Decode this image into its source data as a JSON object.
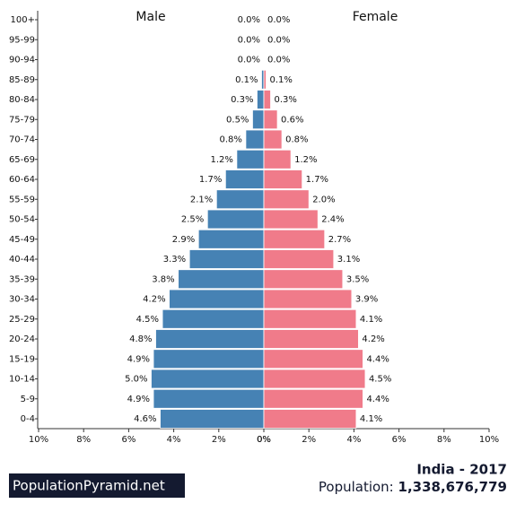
{
  "chart_data": {
    "type": "pyramid",
    "title": "India - 2017",
    "population_label": "Population:",
    "population": "1,338,676,779",
    "brand": "PopulationPyramid.net",
    "categories": [
      "100+",
      "95-99",
      "90-94",
      "85-89",
      "80-84",
      "75-79",
      "70-74",
      "65-69",
      "60-64",
      "55-59",
      "50-54",
      "45-49",
      "40-44",
      "35-39",
      "30-34",
      "25-29",
      "20-24",
      "15-19",
      "10-14",
      "5-9",
      "0-4"
    ],
    "series": [
      {
        "name": "Male",
        "color": "#4682b4",
        "values": [
          0.0,
          0.0,
          0.0,
          0.1,
          0.3,
          0.5,
          0.8,
          1.2,
          1.7,
          2.1,
          2.5,
          2.9,
          3.3,
          3.8,
          4.2,
          4.5,
          4.8,
          4.9,
          5.0,
          4.9,
          4.6
        ],
        "value_labels": [
          "0.0%",
          "0.0%",
          "0.0%",
          "0.1%",
          "0.3%",
          "0.5%",
          "0.8%",
          "1.2%",
          "1.7%",
          "2.1%",
          "2.5%",
          "2.9%",
          "3.3%",
          "3.8%",
          "4.2%",
          "4.5%",
          "4.8%",
          "4.9%",
          "5.0%",
          "4.9%",
          "4.6%"
        ]
      },
      {
        "name": "Female",
        "color": "#f07b8a",
        "values": [
          0.0,
          0.0,
          0.0,
          0.1,
          0.3,
          0.6,
          0.8,
          1.2,
          1.7,
          2.0,
          2.4,
          2.7,
          3.1,
          3.5,
          3.9,
          4.1,
          4.2,
          4.4,
          4.5,
          4.4,
          4.1
        ],
        "value_labels": [
          "0.0%",
          "0.0%",
          "0.0%",
          "0.1%",
          "0.3%",
          "0.6%",
          "0.8%",
          "1.2%",
          "1.7%",
          "2.0%",
          "2.4%",
          "2.7%",
          "3.1%",
          "3.5%",
          "3.9%",
          "4.1%",
          "4.2%",
          "4.4%",
          "4.5%",
          "4.4%",
          "4.1%"
        ]
      }
    ],
    "xlim": [
      0,
      10
    ],
    "xticks": [
      {
        "value": 0,
        "label": "0%"
      },
      {
        "value": 2,
        "label": "2%"
      },
      {
        "value": 4,
        "label": "4%"
      },
      {
        "value": 6,
        "label": "6%"
      },
      {
        "value": 8,
        "label": "8%"
      },
      {
        "value": 10,
        "label": "10%"
      }
    ]
  }
}
